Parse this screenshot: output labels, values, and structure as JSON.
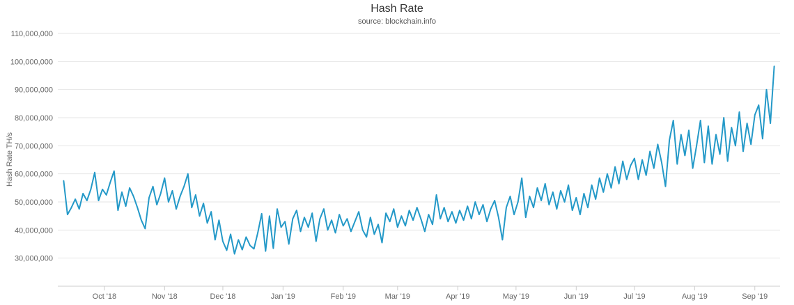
{
  "chart_data": {
    "type": "line",
    "title": "Hash Rate",
    "subtitle": "source: blockchain.info",
    "xlabel": "",
    "ylabel": "Hash Rate TH/s",
    "unit": "TH/s",
    "grid": "horizontal-only",
    "legend": "none",
    "ylim": [
      20000000,
      110000000
    ],
    "y_ticks": [
      30000000,
      40000000,
      50000000,
      60000000,
      70000000,
      80000000,
      90000000,
      100000000,
      110000000
    ],
    "x_domain": [
      "2018-09-07",
      "2019-09-14"
    ],
    "x_tick_labels": [
      "Oct '18",
      "Nov '18",
      "Dec '18",
      "Jan '19",
      "Feb '19",
      "Mar '19",
      "Apr '19",
      "May '19",
      "Jun '19",
      "Jul '19",
      "Aug '19",
      "Sep '19"
    ],
    "x_tick_dates": [
      "2018-10-01",
      "2018-11-01",
      "2018-12-01",
      "2019-01-01",
      "2019-02-01",
      "2019-03-01",
      "2019-04-01",
      "2019-05-01",
      "2019-06-01",
      "2019-07-01",
      "2019-08-01",
      "2019-09-01"
    ],
    "colors": {
      "line": "#2499c8",
      "grid": "#e6e6e6",
      "axis": "#cccccc",
      "tick_label": "#666666",
      "title": "#333333",
      "subtitle": "#555555"
    },
    "series": [
      {
        "name": "Hash Rate",
        "color": "#2499c8",
        "start_date": "2018-09-10",
        "interval_days": 2,
        "value_multiplier": 1000000,
        "values_millions": [
          57.5,
          45.5,
          48,
          51,
          47.5,
          53,
          50.5,
          54.5,
          60.5,
          50.5,
          54.5,
          52.5,
          57,
          61,
          47,
          53.5,
          48.5,
          55,
          52,
          48,
          43.5,
          40.5,
          51.5,
          55.5,
          49,
          53,
          58.5,
          50,
          54,
          47.5,
          52,
          55.5,
          60,
          48,
          52.5,
          45,
          49.5,
          42.5,
          46.5,
          36.5,
          43.5,
          36,
          32.8,
          38.5,
          31.5,
          36.5,
          33,
          37.5,
          34.5,
          33.3,
          39,
          45.8,
          32.5,
          45,
          33.5,
          47.5,
          41,
          43,
          35,
          44,
          47,
          39.5,
          44.5,
          41,
          46,
          36,
          44,
          47.5,
          40,
          43.5,
          39,
          45.5,
          41.5,
          44,
          39.5,
          43,
          46.5,
          40,
          37.5,
          44.5,
          38.5,
          42,
          35.5,
          46,
          43,
          47.5,
          41,
          45,
          41.5,
          47,
          43.5,
          48,
          44,
          39.5,
          45.5,
          42,
          52.5,
          44,
          48,
          43,
          46.5,
          42.5,
          47,
          43.5,
          48.5,
          44,
          50,
          45.5,
          49,
          43,
          47.5,
          50.5,
          44.5,
          36.5,
          48,
          52,
          45.5,
          50,
          58.5,
          44.5,
          52,
          48,
          55,
          50.5,
          56.5,
          49,
          53.5,
          47.5,
          54,
          50,
          56,
          47,
          51.5,
          45.5,
          53,
          48,
          56,
          51,
          58.5,
          53.5,
          60,
          55,
          62.5,
          56.5,
          64.5,
          58,
          63,
          65.5,
          58,
          65,
          59.5,
          68,
          62,
          70.5,
          64,
          55.5,
          72,
          79,
          63.5,
          74,
          66.5,
          75.5,
          62,
          70,
          79,
          64,
          77,
          63.5,
          74,
          67,
          80,
          64.5,
          76.5,
          70,
          82,
          68,
          78,
          70.5,
          81,
          84.5,
          72.5,
          90,
          78,
          98.3
        ]
      }
    ]
  }
}
